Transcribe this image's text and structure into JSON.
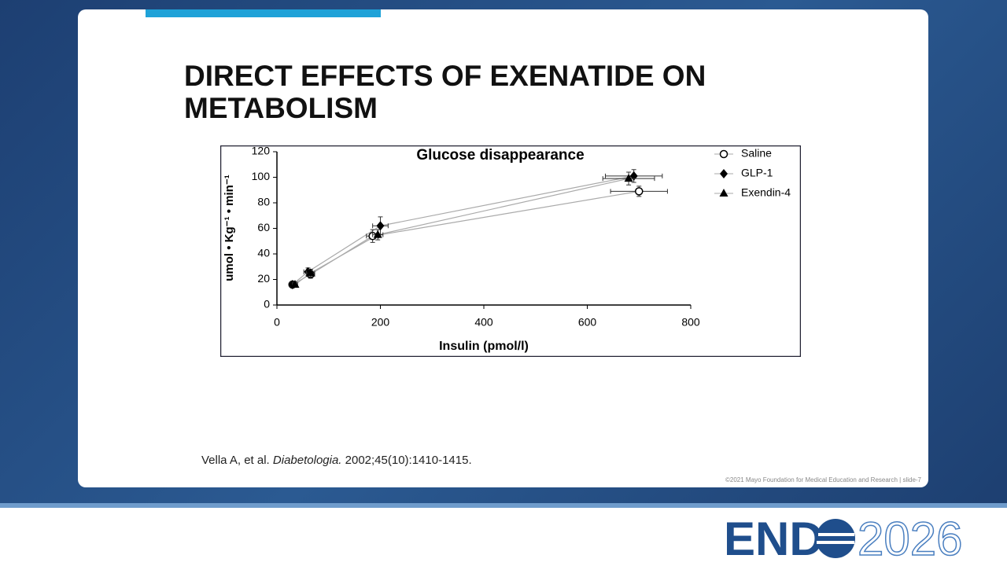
{
  "slide": {
    "title": "DIRECT EFFECTS OF EXENATIDE ON METABOLISM",
    "citation": {
      "authors": "Vella A, et al.",
      "journal": "Diabetologia.",
      "details": "2002;45(10):1410-1415."
    },
    "footer": "©2021 Mayo Foundation for Medical Education and Research  |  slide-7",
    "logo": {
      "left": "END",
      "right": "2026"
    }
  },
  "chart_data": {
    "type": "scatter-line",
    "title": "Glucose disappearance",
    "x_label": "Insulin (pmol/l)",
    "y_label": "umol • Kg⁻¹ • min⁻¹",
    "xlim": [
      0,
      800
    ],
    "xticks": [
      0,
      200,
      400,
      600,
      800
    ],
    "ylim": [
      0,
      120
    ],
    "yticks": [
      0,
      20,
      40,
      60,
      80,
      100,
      120
    ],
    "series": [
      {
        "name": "Saline",
        "color": "#000000",
        "marker": "circle-open",
        "x": [
          30,
          65,
          185,
          700
        ],
        "values": [
          16,
          24,
          54,
          89
        ],
        "x_err": [
          5,
          8,
          12,
          55
        ],
        "y_err": [
          2,
          3,
          5,
          4
        ]
      },
      {
        "name": "GLP-1",
        "color": "#000000",
        "marker": "diamond",
        "x": [
          30,
          60,
          200,
          690
        ],
        "values": [
          16,
          26,
          62,
          101
        ],
        "x_err": [
          5,
          8,
          15,
          55
        ],
        "y_err": [
          2,
          3,
          7,
          5
        ]
      },
      {
        "name": "Exendin-4",
        "color": "#000000",
        "marker": "triangle",
        "x": [
          35,
          65,
          195,
          680
        ],
        "values": [
          16,
          25,
          55,
          99
        ],
        "x_err": [
          5,
          8,
          10,
          50
        ],
        "y_err": [
          2,
          3,
          4,
          5
        ]
      }
    ]
  }
}
